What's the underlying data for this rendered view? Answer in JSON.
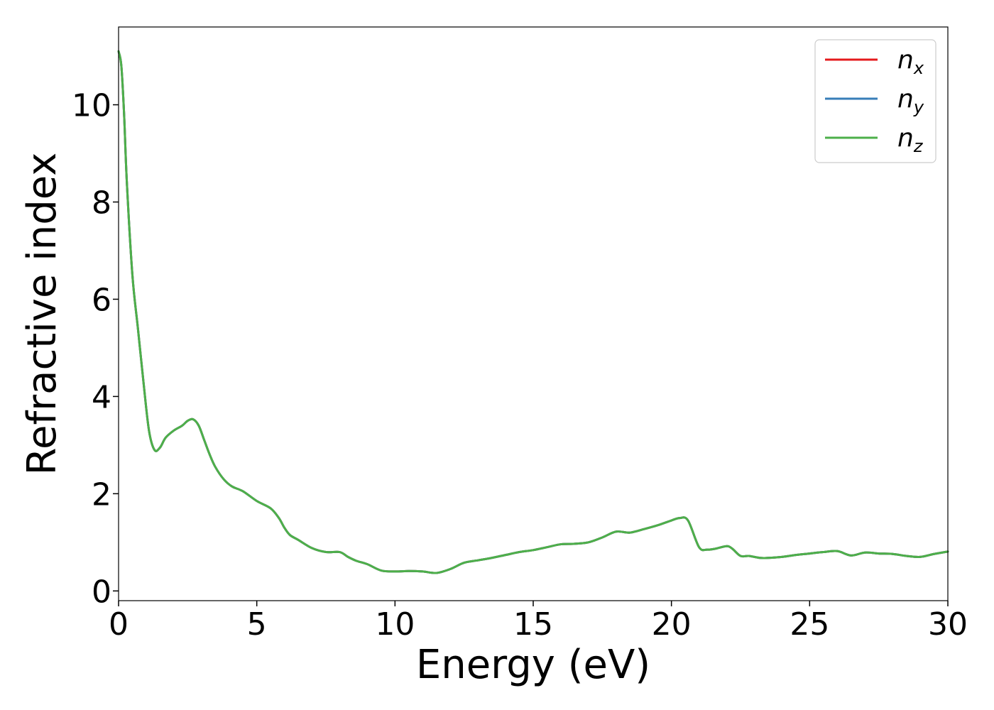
{
  "chart_data": {
    "type": "line",
    "title": "",
    "xlabel": "Energy (eV)",
    "ylabel": "Refractive index",
    "xlim": [
      0,
      30
    ],
    "ylim": [
      -0.2,
      11.6
    ],
    "xticks": [
      0,
      5,
      10,
      15,
      20,
      25,
      30
    ],
    "yticks": [
      0,
      2,
      4,
      6,
      8,
      10
    ],
    "grid": false,
    "legend_position": "top-right",
    "legend": [
      {
        "base": "n",
        "sub": "x",
        "color": "#e41a1c"
      },
      {
        "base": "n",
        "sub": "y",
        "color": "#377eb8"
      },
      {
        "base": "n",
        "sub": "z",
        "color": "#4daf4a"
      }
    ],
    "x": [
      0.0,
      0.1,
      0.2,
      0.3,
      0.5,
      0.7,
      0.9,
      1.1,
      1.3,
      1.5,
      1.7,
      2.0,
      2.3,
      2.5,
      2.7,
      2.9,
      3.1,
      3.3,
      3.5,
      3.8,
      4.1,
      4.5,
      5.0,
      5.5,
      5.8,
      6.0,
      6.2,
      6.5,
      7.0,
      7.5,
      8.0,
      8.3,
      8.6,
      9.0,
      9.5,
      10.0,
      10.5,
      11.0,
      11.5,
      12.0,
      12.5,
      13.0,
      13.5,
      14.0,
      14.5,
      15.0,
      15.5,
      16.0,
      16.5,
      17.0,
      17.5,
      18.0,
      18.5,
      19.0,
      19.5,
      20.0,
      20.3,
      20.6,
      21.0,
      21.3,
      21.6,
      22.0,
      22.2,
      22.5,
      22.8,
      23.2,
      23.5,
      24.0,
      24.5,
      25.0,
      25.5,
      26.0,
      26.5,
      27.0,
      27.5,
      28.0,
      28.5,
      29.0,
      29.5,
      30.0
    ],
    "series": [
      {
        "name": "",
        "color": "#e41a1c",
        "values": [
          11.1,
          10.8,
          9.8,
          8.4,
          6.5,
          5.4,
          4.3,
          3.3,
          2.9,
          2.95,
          3.15,
          3.3,
          3.4,
          3.5,
          3.53,
          3.4,
          3.1,
          2.8,
          2.55,
          2.3,
          2.15,
          2.05,
          1.85,
          1.7,
          1.5,
          1.3,
          1.15,
          1.05,
          0.88,
          0.8,
          0.8,
          0.7,
          0.62,
          0.55,
          0.42,
          0.4,
          0.41,
          0.4,
          0.37,
          0.45,
          0.58,
          0.63,
          0.68,
          0.74,
          0.8,
          0.84,
          0.9,
          0.96,
          0.97,
          1.0,
          1.1,
          1.22,
          1.2,
          1.27,
          1.35,
          1.45,
          1.5,
          1.45,
          0.9,
          0.85,
          0.87,
          0.92,
          0.87,
          0.72,
          0.72,
          0.68,
          0.68,
          0.7,
          0.74,
          0.77,
          0.8,
          0.82,
          0.73,
          0.79,
          0.77,
          0.76,
          0.72,
          0.7,
          0.76,
          0.81
        ]
      },
      {
        "name": "",
        "color": "#377eb8",
        "values": [
          11.1,
          10.8,
          9.8,
          8.4,
          6.5,
          5.4,
          4.3,
          3.3,
          2.9,
          2.95,
          3.15,
          3.3,
          3.4,
          3.5,
          3.53,
          3.4,
          3.1,
          2.8,
          2.55,
          2.3,
          2.15,
          2.05,
          1.85,
          1.7,
          1.5,
          1.3,
          1.15,
          1.05,
          0.88,
          0.8,
          0.8,
          0.7,
          0.62,
          0.55,
          0.42,
          0.4,
          0.41,
          0.4,
          0.37,
          0.45,
          0.58,
          0.63,
          0.68,
          0.74,
          0.8,
          0.84,
          0.9,
          0.96,
          0.97,
          1.0,
          1.1,
          1.22,
          1.2,
          1.27,
          1.35,
          1.45,
          1.5,
          1.45,
          0.9,
          0.85,
          0.87,
          0.92,
          0.87,
          0.72,
          0.72,
          0.68,
          0.68,
          0.7,
          0.74,
          0.77,
          0.8,
          0.82,
          0.73,
          0.79,
          0.77,
          0.76,
          0.72,
          0.7,
          0.76,
          0.81
        ]
      },
      {
        "name": "",
        "color": "#4daf4a",
        "values": [
          11.1,
          10.8,
          9.8,
          8.4,
          6.5,
          5.4,
          4.3,
          3.3,
          2.9,
          2.95,
          3.15,
          3.3,
          3.4,
          3.5,
          3.53,
          3.4,
          3.1,
          2.8,
          2.55,
          2.3,
          2.15,
          2.05,
          1.85,
          1.7,
          1.5,
          1.3,
          1.15,
          1.05,
          0.88,
          0.8,
          0.8,
          0.7,
          0.62,
          0.55,
          0.42,
          0.4,
          0.41,
          0.4,
          0.37,
          0.45,
          0.58,
          0.63,
          0.68,
          0.74,
          0.8,
          0.84,
          0.9,
          0.96,
          0.97,
          1.0,
          1.1,
          1.22,
          1.2,
          1.27,
          1.35,
          1.45,
          1.5,
          1.45,
          0.9,
          0.85,
          0.87,
          0.92,
          0.87,
          0.72,
          0.72,
          0.68,
          0.68,
          0.7,
          0.74,
          0.77,
          0.8,
          0.82,
          0.73,
          0.79,
          0.77,
          0.76,
          0.72,
          0.7,
          0.76,
          0.81
        ]
      }
    ]
  }
}
